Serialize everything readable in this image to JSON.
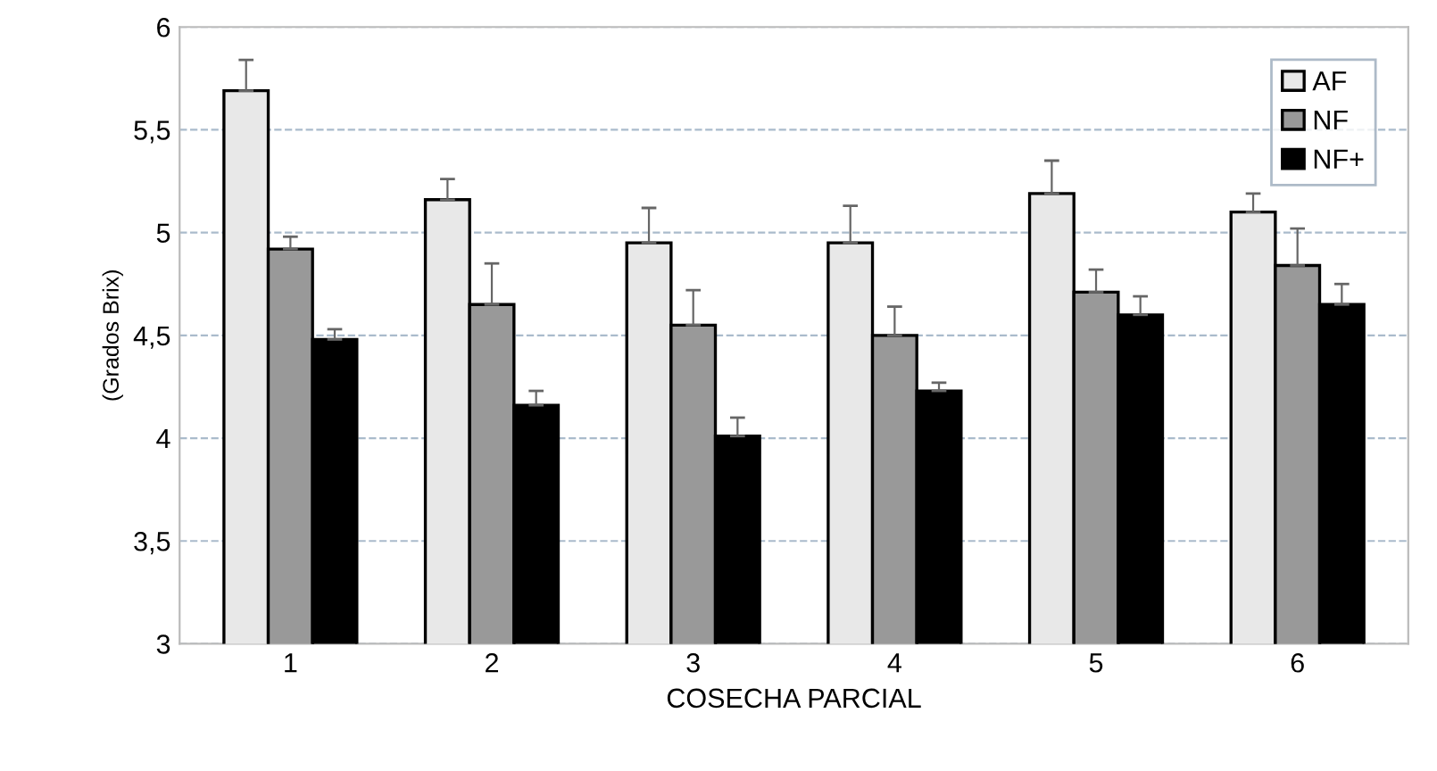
{
  "chart_data": {
    "type": "bar",
    "xlabel": "COSECHA PARCIAL",
    "ylabel": "(Grados Brix)",
    "categories": [
      "1",
      "2",
      "3",
      "4",
      "5",
      "6"
    ],
    "series": [
      {
        "name": "AF",
        "color": "#e8e8e8",
        "values": [
          5.69,
          5.16,
          4.95,
          4.95,
          5.19,
          5.1
        ],
        "errors": [
          [
            5.69,
            5.84
          ],
          [
            5.16,
            5.26
          ],
          [
            4.95,
            5.12
          ],
          [
            4.95,
            5.13
          ],
          [
            5.19,
            5.35
          ],
          [
            5.1,
            5.19
          ]
        ]
      },
      {
        "name": "NF",
        "color": "#999999",
        "values": [
          4.92,
          4.65,
          4.55,
          4.5,
          4.71,
          4.84
        ],
        "errors": [
          [
            4.92,
            4.98
          ],
          [
            4.65,
            4.85
          ],
          [
            4.55,
            4.72
          ],
          [
            4.5,
            4.64
          ],
          [
            4.71,
            4.82
          ],
          [
            4.84,
            5.02
          ]
        ]
      },
      {
        "name": "NF+",
        "color": "#000000",
        "values": [
          4.48,
          4.16,
          4.01,
          4.23,
          4.6,
          4.65
        ],
        "errors": [
          [
            4.48,
            4.53
          ],
          [
            4.16,
            4.23
          ],
          [
            4.01,
            4.1
          ],
          [
            4.23,
            4.27
          ],
          [
            4.6,
            4.69
          ],
          [
            4.65,
            4.75
          ]
        ]
      }
    ],
    "ylim": [
      3,
      6
    ],
    "yticks": [
      3,
      {
        "value": 3.5,
        "label": "3,5"
      },
      4,
      {
        "value": 4.5,
        "label": "4,5"
      },
      5,
      {
        "value": 5.5,
        "label": "5,5"
      },
      6
    ],
    "grid": "y",
    "legend": "top right"
  }
}
